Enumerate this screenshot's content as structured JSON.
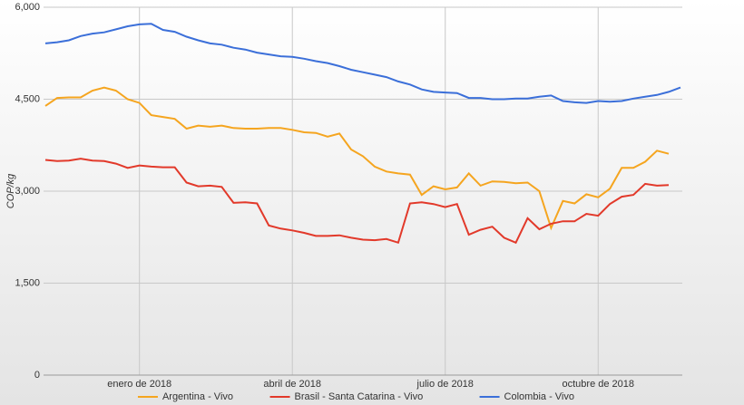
{
  "chart_data": {
    "type": "line",
    "y_label": "COP/kg",
    "categories": [
      null,
      null,
      null,
      null,
      null,
      null,
      null,
      null,
      "enero de 2018",
      null,
      null,
      null,
      null,
      null,
      null,
      null,
      null,
      null,
      null,
      null,
      null,
      "abril de 2018",
      null,
      null,
      null,
      null,
      null,
      null,
      null,
      null,
      null,
      null,
      null,
      null,
      "julio de 2018",
      null,
      null,
      null,
      null,
      null,
      null,
      null,
      null,
      null,
      null,
      null,
      null,
      "octubre de 2018",
      null,
      null,
      null,
      null,
      null,
      null,
      null
    ],
    "series": [
      {
        "name": "Argentina - Vivo",
        "color": "#f5a51f",
        "values": [
          4390,
          4520,
          4530,
          4530,
          4640,
          4690,
          4640,
          4500,
          4440,
          4240,
          4210,
          4180,
          4020,
          4070,
          4050,
          4070,
          4030,
          4020,
          4020,
          4030,
          4030,
          4000,
          3960,
          3950,
          3890,
          3940,
          3680,
          3570,
          3400,
          3320,
          3290,
          3270,
          2940,
          3080,
          3030,
          3060,
          3290,
          3090,
          3160,
          3150,
          3130,
          3140,
          3000,
          2400,
          2840,
          2800,
          2950,
          2900,
          3040,
          3380,
          3380,
          3480,
          3660,
          3610,
          null
        ]
      },
      {
        "name": "Brasil - Santa Catarina - Vivo",
        "color": "#e2392a",
        "values": [
          3510,
          3490,
          3500,
          3530,
          3500,
          3490,
          3450,
          3380,
          3420,
          3400,
          3390,
          3390,
          3140,
          3080,
          3090,
          3070,
          2810,
          2820,
          2800,
          2440,
          2390,
          2360,
          2320,
          2270,
          2270,
          2280,
          2240,
          2210,
          2200,
          2220,
          2160,
          2800,
          2820,
          2790,
          2740,
          2790,
          2290,
          2370,
          2420,
          2240,
          2160,
          2560,
          2380,
          2470,
          2510,
          2510,
          2630,
          2600,
          2790,
          2910,
          2940,
          3120,
          3090,
          3100,
          null
        ]
      },
      {
        "name": "Colombia - Vivo",
        "color": "#3b6fd9",
        "values": [
          5410,
          5430,
          5460,
          5530,
          5570,
          5590,
          5640,
          5690,
          5720,
          5730,
          5630,
          5600,
          5520,
          5460,
          5410,
          5390,
          5340,
          5310,
          5260,
          5230,
          5200,
          5190,
          5160,
          5120,
          5090,
          5040,
          4980,
          4940,
          4900,
          4860,
          4790,
          4740,
          4660,
          4620,
          4610,
          4600,
          4520,
          4520,
          4500,
          4500,
          4510,
          4510,
          4540,
          4560,
          4470,
          4450,
          4440,
          4470,
          4460,
          4470,
          4510,
          4540,
          4570,
          4620,
          4690
        ]
      }
    ],
    "ylim": [
      0,
      6000
    ],
    "yticks": [
      0,
      {
        "value": 1500,
        "label": "1,500"
      },
      {
        "value": 3000,
        "label": "3,000"
      },
      {
        "value": 4500,
        "label": "4,500"
      },
      {
        "value": 6000,
        "label": "6,000"
      }
    ],
    "grid": true,
    "legend": "bottom"
  }
}
